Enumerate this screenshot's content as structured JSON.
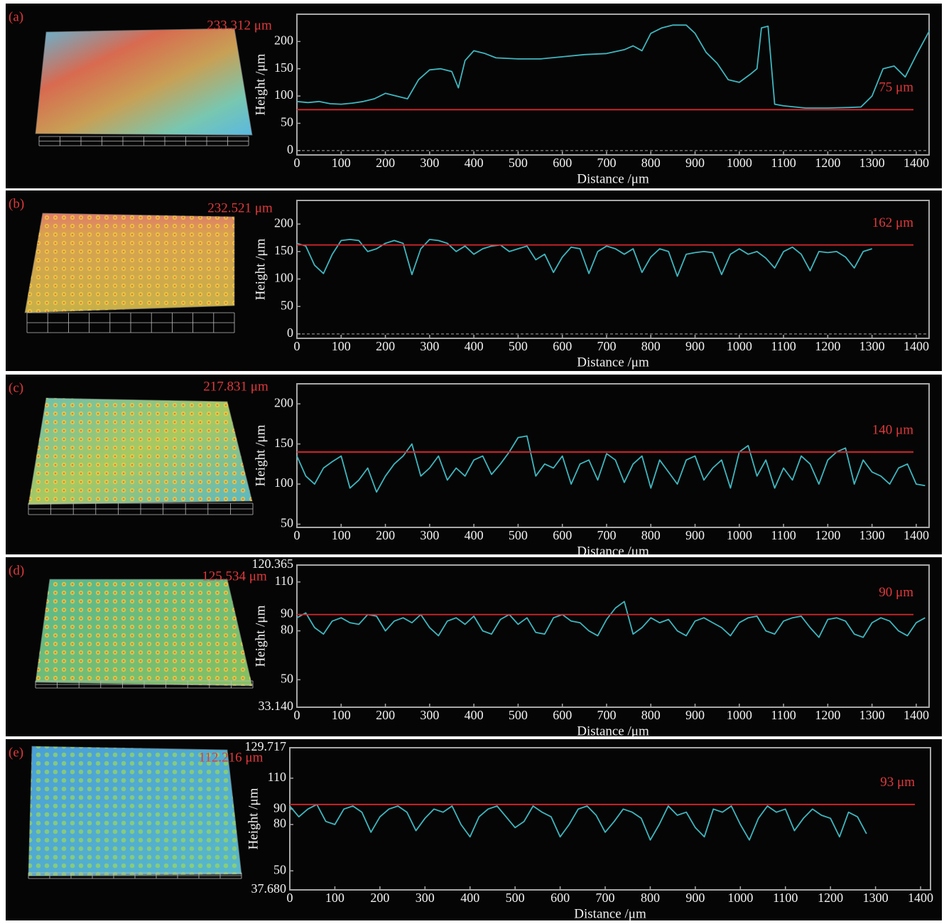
{
  "chart_data": [
    {
      "type": "line",
      "panel_label": "(a)",
      "surface_label": "233.312 μm",
      "x_label": "Distance /μm",
      "y_label": "Height /μm",
      "xlim": [
        0,
        1429
      ],
      "ylim": [
        -8,
        250
      ],
      "xticks": [
        0,
        100,
        200,
        300,
        400,
        500,
        600,
        700,
        800,
        900,
        1000,
        1100,
        1200,
        1300,
        1400
      ],
      "yticks": [
        0,
        50,
        100,
        150,
        200
      ],
      "zero_line": true,
      "color": "#3fb6bf",
      "reference": {
        "value": 75,
        "label": "75 μm",
        "color": "#d8262b"
      },
      "x": [
        0,
        25,
        50,
        75,
        100,
        125,
        150,
        175,
        200,
        225,
        250,
        275,
        300,
        325,
        350,
        365,
        380,
        400,
        425,
        450,
        500,
        550,
        600,
        650,
        700,
        740,
        760,
        780,
        800,
        825,
        850,
        880,
        900,
        925,
        950,
        975,
        1000,
        1025,
        1040,
        1050,
        1065,
        1080,
        1100,
        1150,
        1200,
        1250,
        1275,
        1300,
        1325,
        1350,
        1375,
        1400,
        1430
      ],
      "values": [
        90,
        88,
        90,
        86,
        85,
        87,
        90,
        95,
        105,
        100,
        95,
        130,
        148,
        150,
        145,
        115,
        165,
        183,
        178,
        170,
        168,
        168,
        172,
        176,
        178,
        185,
        192,
        183,
        215,
        225,
        230,
        230,
        215,
        180,
        160,
        130,
        125,
        140,
        150,
        225,
        228,
        85,
        82,
        78,
        78,
        79,
        80,
        100,
        150,
        155,
        135,
        175,
        220
      ]
    },
    {
      "type": "line",
      "panel_label": "(b)",
      "surface_label": "232.521 μm",
      "x_label": "Distance /μm",
      "y_label": "Height /μm",
      "xlim": [
        0,
        1429
      ],
      "ylim": [
        -8,
        243
      ],
      "xticks": [
        0,
        100,
        200,
        300,
        400,
        500,
        600,
        700,
        800,
        900,
        1000,
        1100,
        1200,
        1300,
        1400
      ],
      "yticks": [
        0,
        50,
        100,
        150,
        200
      ],
      "zero_line": true,
      "color": "#3fb6bf",
      "reference": {
        "value": 162,
        "label": "162 μm",
        "color": "#d8262b"
      },
      "x": [
        0,
        20,
        40,
        60,
        80,
        100,
        120,
        140,
        160,
        180,
        200,
        220,
        240,
        260,
        280,
        300,
        320,
        340,
        360,
        380,
        400,
        420,
        440,
        460,
        480,
        500,
        520,
        540,
        560,
        580,
        600,
        620,
        640,
        660,
        680,
        700,
        720,
        740,
        760,
        780,
        800,
        820,
        840,
        860,
        880,
        900,
        920,
        940,
        960,
        980,
        1000,
        1020,
        1040,
        1060,
        1080,
        1100,
        1120,
        1140,
        1160,
        1180,
        1200,
        1220,
        1240,
        1260,
        1280,
        1300
      ],
      "values": [
        165,
        160,
        125,
        110,
        145,
        170,
        172,
        170,
        150,
        155,
        165,
        170,
        165,
        108,
        155,
        172,
        170,
        165,
        150,
        160,
        145,
        155,
        160,
        162,
        150,
        155,
        160,
        135,
        145,
        112,
        140,
        158,
        155,
        110,
        150,
        160,
        155,
        145,
        155,
        112,
        140,
        155,
        150,
        105,
        145,
        148,
        150,
        148,
        108,
        145,
        155,
        145,
        150,
        138,
        120,
        150,
        158,
        145,
        115,
        150,
        148,
        150,
        140,
        120,
        150,
        155
      ]
    },
    {
      "type": "line",
      "panel_label": "(c)",
      "surface_label": "217.831 μm",
      "x_label": "Distance /μm",
      "y_label": "Height /μm",
      "xlim": [
        0,
        1429
      ],
      "ylim": [
        46,
        225
      ],
      "xticks": [
        0,
        100,
        200,
        300,
        400,
        500,
        600,
        700,
        800,
        900,
        1000,
        1100,
        1200,
        1300,
        1400
      ],
      "yticks": [
        50,
        100,
        150,
        200
      ],
      "zero_line": false,
      "color": "#3fb6bf",
      "reference": {
        "value": 140,
        "label": "140 μm",
        "color": "#d8262b"
      },
      "x": [
        0,
        20,
        40,
        60,
        80,
        100,
        120,
        140,
        160,
        180,
        200,
        220,
        240,
        260,
        280,
        300,
        320,
        340,
        360,
        380,
        400,
        420,
        440,
        460,
        480,
        500,
        520,
        540,
        560,
        580,
        600,
        620,
        640,
        660,
        680,
        700,
        720,
        740,
        760,
        780,
        800,
        820,
        840,
        860,
        880,
        900,
        920,
        940,
        960,
        980,
        1000,
        1020,
        1040,
        1060,
        1080,
        1100,
        1120,
        1140,
        1160,
        1180,
        1200,
        1220,
        1240,
        1260,
        1280,
        1300,
        1320,
        1340,
        1360,
        1380,
        1400,
        1420
      ],
      "values": [
        135,
        110,
        100,
        120,
        128,
        135,
        95,
        105,
        120,
        90,
        110,
        125,
        135,
        150,
        110,
        120,
        135,
        105,
        120,
        110,
        130,
        135,
        112,
        125,
        140,
        158,
        160,
        110,
        125,
        120,
        135,
        100,
        125,
        130,
        105,
        138,
        130,
        102,
        125,
        135,
        95,
        130,
        115,
        100,
        130,
        135,
        105,
        120,
        130,
        95,
        140,
        148,
        110,
        130,
        95,
        120,
        105,
        135,
        125,
        100,
        130,
        140,
        145,
        100,
        130,
        115,
        110,
        100,
        120,
        125,
        100,
        98
      ]
    },
    {
      "type": "line",
      "panel_label": "(d)",
      "surface_label": "125.534 μm",
      "x_label": "Distance /μm",
      "y_label": "Height /μm",
      "xlim": [
        0,
        1429
      ],
      "ylim": [
        33.14,
        120.365
      ],
      "xticks": [
        0,
        100,
        200,
        300,
        400,
        500,
        600,
        700,
        800,
        900,
        1000,
        1100,
        1200,
        1300,
        1400
      ],
      "yticks": [
        {
          "value": 33.14,
          "label": "33.140"
        },
        50,
        80,
        90,
        110,
        120.365
      ],
      "zero_line": false,
      "color": "#3fb6bf",
      "reference": {
        "value": 90,
        "label": "90 μm",
        "color": "#d8262b"
      },
      "x": [
        0,
        20,
        40,
        60,
        80,
        100,
        120,
        140,
        160,
        180,
        200,
        220,
        240,
        260,
        280,
        300,
        320,
        340,
        360,
        380,
        400,
        420,
        440,
        460,
        480,
        500,
        520,
        540,
        560,
        580,
        600,
        620,
        640,
        660,
        680,
        700,
        720,
        740,
        760,
        780,
        800,
        820,
        840,
        860,
        880,
        900,
        920,
        940,
        960,
        980,
        1000,
        1020,
        1040,
        1060,
        1080,
        1100,
        1120,
        1140,
        1160,
        1180,
        1200,
        1220,
        1240,
        1260,
        1280,
        1300,
        1320,
        1340,
        1360,
        1380,
        1400,
        1420
      ],
      "values": [
        88,
        91,
        82,
        78,
        86,
        88,
        85,
        84,
        90,
        89,
        80,
        86,
        88,
        85,
        90,
        82,
        77,
        86,
        88,
        84,
        89,
        80,
        78,
        87,
        90,
        84,
        88,
        79,
        78,
        88,
        90,
        86,
        85,
        80,
        77,
        87,
        94,
        98,
        78,
        82,
        88,
        85,
        87,
        80,
        77,
        86,
        88,
        85,
        82,
        77,
        85,
        88,
        89,
        80,
        78,
        86,
        88,
        89,
        82,
        76,
        87,
        88,
        86,
        78,
        76,
        85,
        88,
        86,
        80,
        77,
        85,
        88
      ]
    },
    {
      "type": "line",
      "panel_label": "(e)",
      "surface_label": "112.216 μm",
      "x_label": "Distance /μm",
      "y_label": "Height /μm",
      "xlim": [
        0,
        1422
      ],
      "ylim": [
        37.68,
        129.717
      ],
      "xticks": [
        0,
        100,
        200,
        300,
        400,
        500,
        600,
        700,
        800,
        900,
        1000,
        1100,
        1200,
        1300,
        1400
      ],
      "yticks": [
        {
          "value": 37.68,
          "label": "37.680"
        },
        50,
        80,
        90,
        110,
        129.717
      ],
      "zero_line": false,
      "color": "#3fb6bf",
      "reference": {
        "value": 93,
        "label": "93 μm",
        "color": "#d8262b"
      },
      "x": [
        0,
        20,
        40,
        60,
        80,
        100,
        120,
        140,
        160,
        180,
        200,
        220,
        240,
        260,
        280,
        300,
        320,
        340,
        360,
        380,
        400,
        420,
        440,
        460,
        480,
        500,
        520,
        540,
        560,
        580,
        600,
        620,
        640,
        660,
        680,
        700,
        720,
        740,
        760,
        780,
        800,
        820,
        840,
        860,
        880,
        900,
        920,
        940,
        960,
        980,
        1000,
        1020,
        1040,
        1060,
        1080,
        1100,
        1120,
        1140,
        1160,
        1180,
        1200,
        1220,
        1240,
        1260,
        1280
      ],
      "values": [
        92,
        85,
        90,
        93,
        82,
        80,
        90,
        92,
        88,
        75,
        85,
        90,
        92,
        88,
        76,
        84,
        90,
        88,
        92,
        80,
        72,
        85,
        90,
        92,
        85,
        78,
        82,
        92,
        88,
        85,
        72,
        80,
        90,
        92,
        86,
        75,
        82,
        90,
        88,
        84,
        70,
        80,
        92,
        86,
        88,
        78,
        72,
        90,
        88,
        92,
        80,
        70,
        84,
        92,
        88,
        90,
        76,
        84,
        90,
        86,
        84,
        72,
        88,
        85,
        74
      ]
    }
  ]
}
